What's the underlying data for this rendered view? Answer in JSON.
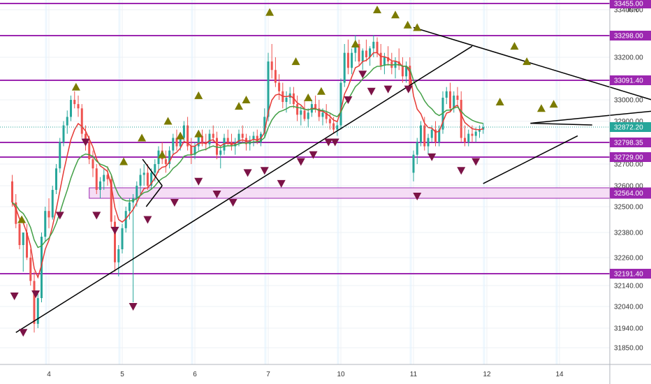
{
  "chart_data": {
    "type": "candlestick",
    "currency": "INR",
    "colors": {
      "up": "#26a69a",
      "down": "#ef5350",
      "level": "#9c27b0",
      "zone_fill": "#f3d5f3",
      "ema_fast": "#e53935",
      "ema_slow": "#43a047",
      "marker_up": "#7b7b00",
      "marker_down": "#7b1346",
      "trendline": "#000000",
      "price_label": "#26a69a"
    },
    "y_axis": {
      "ticks": [
        "33400.00",
        "33200.00",
        "33000.00",
        "32900.00",
        "32700.00",
        "32600.00",
        "32500.00",
        "32380.00",
        "32260.00",
        "32140.00",
        "32040.00",
        "31940.00",
        "31850.00"
      ]
    },
    "x_axis": {
      "ticks": [
        {
          "label": "4",
          "day": 1
        },
        {
          "label": "5",
          "day": 2
        },
        {
          "label": "6",
          "day": 3
        },
        {
          "label": "7",
          "day": 4
        },
        {
          "label": "10",
          "day": 5
        },
        {
          "label": "11",
          "day": 6
        },
        {
          "label": "12",
          "day": 7
        },
        {
          "label": "14",
          "day": 8
        }
      ]
    },
    "levels": [
      {
        "value": 33455.0,
        "label": "33455.00"
      },
      {
        "value": 33298.0,
        "label": "33298.00"
      },
      {
        "value": 33091.4,
        "label": "33091.40"
      },
      {
        "value": 32798.35,
        "label": "32798.35"
      },
      {
        "value": 32729.0,
        "label": "32729.00"
      },
      {
        "value": 32191.4,
        "label": "32191.40"
      }
    ],
    "zone": {
      "from_day": 0.55,
      "to_day": 8.7,
      "low": 32540,
      "high": 32590,
      "label": "32564.00"
    },
    "current_price": {
      "value": 32872.2,
      "label": "32872.20"
    },
    "trendlines": [
      {
        "from": [
          -0.45,
          31920
        ],
        "to": [
          5.8,
          33250
        ]
      },
      {
        "from": [
          5.0,
          33330
        ],
        "to": [
          8.85,
          32940
        ]
      },
      {
        "from": [
          5.95,
          32610
        ],
        "to": [
          7.25,
          32830
        ]
      },
      {
        "from": [
          6.6,
          32890
        ],
        "to": [
          7.45,
          32882
        ]
      },
      {
        "from": [
          6.6,
          32890
        ],
        "to": [
          8.95,
          32970
        ]
      },
      {
        "from": [
          1.28,
          32720
        ],
        "to": [
          1.55,
          32600
        ]
      },
      {
        "from": [
          1.55,
          32600
        ],
        "to": [
          1.33,
          32500
        ]
      }
    ],
    "buy_markers": [
      [
        -0.37,
        32440
      ],
      [
        0.37,
        33060
      ],
      [
        1.02,
        32710
      ],
      [
        1.27,
        32820
      ],
      [
        1.55,
        32740
      ],
      [
        1.63,
        32900
      ],
      [
        1.8,
        32830
      ],
      [
        2.05,
        32840
      ],
      [
        2.05,
        33020
      ],
      [
        2.6,
        32970
      ],
      [
        2.7,
        33000
      ],
      [
        3.02,
        33390
      ],
      [
        3.38,
        33180
      ],
      [
        3.55,
        33010
      ],
      [
        3.73,
        33040
      ],
      [
        4.2,
        33260
      ],
      [
        4.5,
        33400
      ],
      [
        4.75,
        33380
      ],
      [
        4.92,
        33340
      ],
      [
        5.05,
        33330
      ],
      [
        6.18,
        32990
      ],
      [
        6.38,
        33250
      ],
      [
        6.55,
        33180
      ],
      [
        6.75,
        32960
      ],
      [
        6.92,
        32980
      ]
    ],
    "sell_markers": [
      [
        -0.47,
        32090
      ],
      [
        -0.35,
        31920
      ],
      [
        -0.18,
        32100
      ],
      [
        0.15,
        32460
      ],
      [
        0.5,
        32800
      ],
      [
        0.65,
        32460
      ],
      [
        0.9,
        32390
      ],
      [
        1.15,
        32040
      ],
      [
        1.35,
        32440
      ],
      [
        1.72,
        32520
      ],
      [
        2.05,
        32620
      ],
      [
        2.3,
        32560
      ],
      [
        2.52,
        32520
      ],
      [
        2.72,
        32660
      ],
      [
        2.95,
        32670
      ],
      [
        3.18,
        32610
      ],
      [
        3.45,
        32710
      ],
      [
        3.62,
        32740
      ],
      [
        3.83,
        32800
      ],
      [
        3.92,
        32800
      ],
      [
        4.1,
        33000
      ],
      [
        4.3,
        33120
      ],
      [
        4.42,
        33040
      ],
      [
        4.65,
        33050
      ],
      [
        4.93,
        33050
      ],
      [
        5.05,
        32550
      ],
      [
        5.25,
        32730
      ],
      [
        5.65,
        32670
      ],
      [
        5.85,
        32710
      ]
    ],
    "ohlc": [
      [
        -0.5,
        32620,
        32650,
        32500,
        32520
      ],
      [
        -0.45,
        32520,
        32560,
        32400,
        32420
      ],
      [
        -0.4,
        32420,
        32450,
        32300,
        32320
      ],
      [
        -0.35,
        32320,
        32380,
        32200,
        32380
      ],
      [
        -0.3,
        32380,
        32420,
        32250,
        32260
      ],
      [
        -0.25,
        32260,
        32300,
        32140,
        32160
      ],
      [
        -0.2,
        32160,
        32200,
        31920,
        31960
      ],
      [
        -0.15,
        31960,
        32100,
        31940,
        32080
      ],
      [
        -0.1,
        32080,
        32380,
        32060,
        32360
      ],
      [
        -0.05,
        32360,
        32500,
        32340,
        32480
      ],
      [
        0.0,
        32480,
        32540,
        32400,
        32450
      ],
      [
        0.05,
        32450,
        32600,
        32440,
        32580
      ],
      [
        0.1,
        32580,
        32700,
        32560,
        32680
      ],
      [
        0.15,
        32680,
        32820,
        32660,
        32800
      ],
      [
        0.2,
        32800,
        32900,
        32780,
        32880
      ],
      [
        0.25,
        32880,
        32950,
        32840,
        32920
      ],
      [
        0.3,
        32920,
        33020,
        32900,
        33000
      ],
      [
        0.35,
        33000,
        33040,
        32960,
        32980
      ],
      [
        0.4,
        32980,
        33020,
        32920,
        32960
      ],
      [
        0.45,
        32960,
        32980,
        32820,
        32840
      ],
      [
        0.5,
        32840,
        32880,
        32760,
        32800
      ],
      [
        0.55,
        32800,
        32830,
        32700,
        32720
      ],
      [
        0.6,
        32720,
        32760,
        32640,
        32680
      ],
      [
        0.65,
        32680,
        32700,
        32560,
        32580
      ],
      [
        0.7,
        32580,
        32640,
        32540,
        32620
      ],
      [
        0.75,
        32620,
        32680,
        32580,
        32650
      ],
      [
        0.8,
        32650,
        32690,
        32600,
        32630
      ],
      [
        0.85,
        32630,
        32650,
        32400,
        32430
      ],
      [
        0.9,
        32430,
        32460,
        32200,
        32240
      ],
      [
        0.95,
        32240,
        32320,
        32180,
        32300
      ],
      [
        1.0,
        32300,
        32420,
        32280,
        32400
      ],
      [
        1.05,
        32400,
        32500,
        32380,
        32480
      ],
      [
        1.1,
        32480,
        32540,
        32440,
        32520
      ],
      [
        1.15,
        32520,
        32560,
        32060,
        32540
      ],
      [
        1.2,
        32540,
        32620,
        32500,
        32600
      ],
      [
        1.25,
        32600,
        32680,
        32560,
        32650
      ],
      [
        1.3,
        32650,
        32700,
        32600,
        32660
      ],
      [
        1.35,
        32660,
        32700,
        32580,
        32600
      ],
      [
        1.4,
        32600,
        32680,
        32580,
        32660
      ],
      [
        1.45,
        32660,
        32720,
        32620,
        32700
      ],
      [
        1.5,
        32700,
        32780,
        32660,
        32760
      ],
      [
        1.55,
        32760,
        32800,
        32700,
        32720
      ],
      [
        1.6,
        32720,
        32760,
        32660,
        32700
      ],
      [
        1.65,
        32700,
        32780,
        32680,
        32760
      ],
      [
        1.7,
        32760,
        32840,
        32740,
        32820
      ],
      [
        1.75,
        32820,
        32860,
        32760,
        32780
      ],
      [
        1.8,
        32780,
        32840,
        32760,
        32820
      ],
      [
        1.85,
        32820,
        32900,
        32800,
        32880
      ],
      [
        1.9,
        32880,
        32920,
        32760,
        32780
      ],
      [
        1.95,
        32780,
        32820,
        32700,
        32740
      ],
      [
        2.0,
        32740,
        32800,
        32720,
        32780
      ],
      [
        2.05,
        32780,
        32850,
        32760,
        32830
      ],
      [
        2.1,
        32830,
        32860,
        32780,
        32800
      ],
      [
        2.15,
        32800,
        32840,
        32760,
        32790
      ],
      [
        2.2,
        32790,
        32860,
        32770,
        32840
      ],
      [
        2.25,
        32840,
        32880,
        32800,
        32820
      ],
      [
        2.3,
        32820,
        32850,
        32720,
        32740
      ],
      [
        2.35,
        32740,
        32780,
        32680,
        32760
      ],
      [
        2.4,
        32760,
        32840,
        32740,
        32820
      ],
      [
        2.45,
        32820,
        32860,
        32780,
        32800
      ],
      [
        2.5,
        32800,
        32840,
        32760,
        32780
      ],
      [
        2.55,
        32780,
        32820,
        32740,
        32800
      ],
      [
        2.6,
        32800,
        32860,
        32780,
        32840
      ],
      [
        2.65,
        32840,
        32880,
        32800,
        32820
      ],
      [
        2.7,
        32820,
        32840,
        32760,
        32790
      ],
      [
        2.75,
        32790,
        32830,
        32760,
        32810
      ],
      [
        2.8,
        32810,
        32850,
        32780,
        32830
      ],
      [
        2.85,
        32830,
        32860,
        32790,
        32800
      ],
      [
        2.9,
        32800,
        32850,
        32780,
        32840
      ],
      [
        2.95,
        32840,
        32960,
        32820,
        32920
      ],
      [
        3.0,
        32920,
        33220,
        32900,
        33180
      ],
      [
        3.05,
        33180,
        33260,
        33100,
        33140
      ],
      [
        3.1,
        33140,
        33200,
        33060,
        33080
      ],
      [
        3.15,
        33080,
        33120,
        33000,
        33040
      ],
      [
        3.2,
        33040,
        33080,
        32960,
        32990
      ],
      [
        3.25,
        32990,
        33040,
        32940,
        33010
      ],
      [
        3.3,
        33010,
        33060,
        32980,
        33030
      ],
      [
        3.35,
        33030,
        33060,
        32960,
        32980
      ],
      [
        3.4,
        32980,
        33020,
        32900,
        32930
      ],
      [
        3.45,
        32930,
        32970,
        32880,
        32950
      ],
      [
        3.5,
        32950,
        33000,
        32900,
        32910
      ],
      [
        3.55,
        32910,
        32960,
        32870,
        32940
      ],
      [
        3.6,
        32940,
        33000,
        32920,
        32980
      ],
      [
        3.65,
        32980,
        33020,
        32940,
        32960
      ],
      [
        3.7,
        32960,
        33000,
        32900,
        32920
      ],
      [
        3.75,
        32920,
        32960,
        32880,
        32940
      ],
      [
        3.8,
        32940,
        32980,
        32890,
        32910
      ],
      [
        3.85,
        32910,
        32940,
        32860,
        32890
      ],
      [
        3.9,
        32890,
        32920,
        32840,
        32860
      ],
      [
        3.95,
        32860,
        32900,
        32830,
        32880
      ],
      [
        4.0,
        32880,
        33100,
        32860,
        33080
      ],
      [
        4.05,
        33080,
        33260,
        33060,
        33220
      ],
      [
        4.1,
        33220,
        33280,
        33120,
        33150
      ],
      [
        4.15,
        33150,
        33240,
        33120,
        33220
      ],
      [
        4.2,
        33220,
        33300,
        33180,
        33260
      ],
      [
        4.25,
        33260,
        33280,
        33160,
        33180
      ],
      [
        4.3,
        33180,
        33240,
        33140,
        33230
      ],
      [
        4.35,
        33230,
        33280,
        33180,
        33200
      ],
      [
        4.4,
        33200,
        33250,
        33160,
        33240
      ],
      [
        4.45,
        33240,
        33300,
        33200,
        33270
      ],
      [
        4.5,
        33270,
        33290,
        33200,
        33220
      ],
      [
        4.55,
        33220,
        33260,
        33140,
        33160
      ],
      [
        4.6,
        33160,
        33220,
        33120,
        33200
      ],
      [
        4.65,
        33200,
        33250,
        33160,
        33180
      ],
      [
        4.7,
        33180,
        33220,
        33120,
        33150
      ],
      [
        4.75,
        33150,
        33200,
        33100,
        33180
      ],
      [
        4.8,
        33180,
        33240,
        33140,
        33160
      ],
      [
        4.85,
        33160,
        33200,
        33080,
        33110
      ],
      [
        4.9,
        33110,
        33180,
        33080,
        33160
      ],
      [
        4.95,
        33160,
        33200,
        33040,
        33060
      ],
      [
        5.0,
        32660,
        32760,
        32620,
        32740
      ],
      [
        5.05,
        32740,
        32820,
        32700,
        32800
      ],
      [
        5.1,
        32800,
        32900,
        32780,
        32880
      ],
      [
        5.15,
        32880,
        32920,
        32760,
        32780
      ],
      [
        5.2,
        32780,
        32840,
        32740,
        32820
      ],
      [
        5.25,
        32820,
        32880,
        32800,
        32860
      ],
      [
        5.3,
        32860,
        32900,
        32780,
        32800
      ],
      [
        5.35,
        32800,
        32880,
        32780,
        32860
      ],
      [
        5.4,
        32860,
        33040,
        32840,
        33010
      ],
      [
        5.45,
        33010,
        33060,
        32980,
        33040
      ],
      [
        5.5,
        33040,
        33080,
        32940,
        32960
      ],
      [
        5.55,
        32960,
        33040,
        32940,
        33020
      ],
      [
        5.6,
        33020,
        33060,
        32980,
        33000
      ],
      [
        5.65,
        33000,
        33040,
        32800,
        32820
      ],
      [
        5.7,
        32820,
        32880,
        32780,
        32800
      ],
      [
        5.75,
        32800,
        32860,
        32780,
        32840
      ],
      [
        5.8,
        32840,
        32880,
        32800,
        32830
      ],
      [
        5.85,
        32830,
        32870,
        32800,
        32850
      ],
      [
        5.9,
        32850,
        32880,
        32820,
        32860
      ],
      [
        5.95,
        32860,
        32890,
        32840,
        32872
      ]
    ]
  }
}
